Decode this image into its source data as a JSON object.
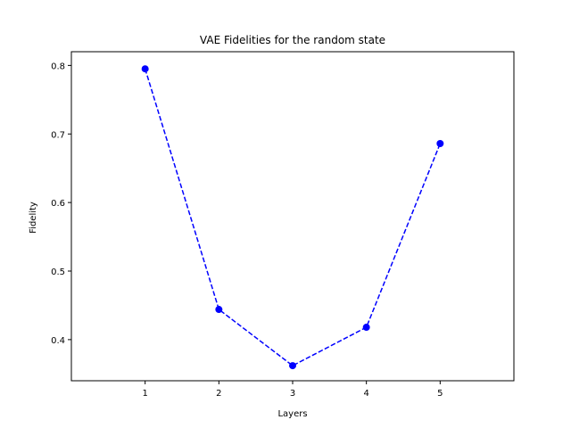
{
  "chart_data": {
    "type": "line",
    "title": "VAE Fidelities for the random state",
    "xlabel": "Layers",
    "ylabel": "Fidelity",
    "x": [
      1,
      2,
      3,
      4,
      5
    ],
    "xlim": [
      0,
      6
    ],
    "ylim": [
      0.34,
      0.82
    ],
    "xticks": [
      1,
      2,
      3,
      4,
      5
    ],
    "yticks": [
      0.4,
      0.5,
      0.6,
      0.7,
      0.8
    ],
    "ytick_labels": [
      "0.4",
      "0.5",
      "0.6",
      "0.7",
      "0.8"
    ],
    "grid": false,
    "series": [
      {
        "values": [
          0.795,
          0.444,
          0.362,
          0.418,
          0.686
        ],
        "color": "#0000ff",
        "line_style": "dashed",
        "marker": "circle"
      }
    ]
  }
}
